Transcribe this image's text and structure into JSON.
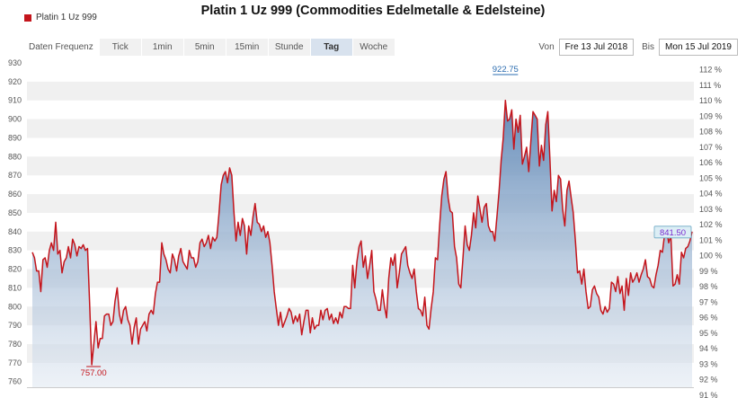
{
  "title": "Platin 1 Uz 999 (Commodities Edelmetalle & Edelsteine)",
  "legend": {
    "series_name": "Platin 1 Uz 999"
  },
  "toolbar": {
    "frequency_label": "Daten Frequenz",
    "frequencies": [
      "Tick",
      "1min",
      "5min",
      "15min",
      "Stunde",
      "Tag",
      "Woche"
    ],
    "active_frequency": "Tag"
  },
  "range": {
    "from_label": "Von",
    "from_value": "Fre 13 Jul 2018",
    "to_label": "Bis",
    "to_value": "Mon 15 Jul 2019"
  },
  "colors": {
    "line": "#c4151c",
    "band": "#f0f0f0",
    "fill_top": "#5a84b4",
    "fill_bottom": "#dfe7f1",
    "axis_text": "#555555"
  },
  "chart_data": {
    "type": "area",
    "title": "Platin 1 Uz 999 (Commodities Edelmetalle & Edelsteine)",
    "series": [
      {
        "name": "Platin 1 Uz 999",
        "values": [
          829,
          826,
          819,
          819,
          808,
          825,
          826,
          821,
          830,
          834,
          830,
          845,
          828,
          830,
          818,
          824,
          826,
          832,
          826,
          836,
          833,
          827,
          832,
          831,
          833,
          830,
          831,
          802,
          769,
          780,
          792,
          778,
          783,
          783,
          795,
          796,
          796,
          790,
          792,
          803,
          810,
          796,
          791,
          798,
          800,
          793,
          790,
          780,
          789,
          794,
          780,
          788,
          790,
          792,
          787,
          796,
          798,
          796,
          807,
          813,
          813,
          834,
          828,
          825,
          820,
          818,
          828,
          825,
          819,
          827,
          831,
          824,
          822,
          820,
          830,
          826,
          826,
          821,
          824,
          834,
          836,
          832,
          834,
          838,
          831,
          837,
          835,
          837,
          850,
          865,
          870,
          872,
          866,
          874,
          870,
          851,
          835,
          845,
          838,
          847,
          843,
          828,
          843,
          838,
          848,
          855,
          845,
          844,
          840,
          843,
          837,
          840,
          834,
          822,
          808,
          799,
          790,
          797,
          789,
          792,
          795,
          799,
          797,
          791,
          795,
          792,
          796,
          785,
          792,
          798,
          798,
          786,
          794,
          788,
          790,
          790,
          798,
          793,
          798,
          799,
          793,
          796,
          791,
          794,
          791,
          797,
          794,
          800,
          800,
          799,
          799,
          822,
          810,
          824,
          832,
          835,
          821,
          827,
          815,
          822,
          830,
          808,
          804,
          798,
          798,
          809,
          800,
          794,
          815,
          826,
          822,
          828,
          810,
          818,
          828,
          830,
          832,
          822,
          818,
          815,
          820,
          808,
          799,
          798,
          795,
          805,
          790,
          788,
          799,
          808,
          826,
          825,
          843,
          859,
          868,
          872,
          858,
          851,
          850,
          832,
          826,
          812,
          810,
          826,
          843,
          833,
          830,
          838,
          850,
          842,
          859,
          852,
          845,
          853,
          855,
          843,
          840,
          840,
          835,
          848,
          861,
          878,
          890,
          910,
          899,
          900,
          905,
          884,
          900,
          893,
          902,
          876,
          880,
          885,
          872,
          888,
          904,
          902,
          900,
          875,
          886,
          878,
          897,
          904,
          878,
          851,
          862,
          856,
          870,
          868,
          852,
          843,
          862,
          867,
          858,
          850,
          835,
          818,
          819,
          812,
          820,
          808,
          799,
          800,
          809,
          811,
          807,
          805,
          798,
          796,
          800,
          797,
          799,
          813,
          812,
          808,
          816,
          807,
          811,
          798,
          815,
          806,
          818,
          813,
          815,
          818,
          813,
          817,
          820,
          825,
          816,
          815,
          811,
          810,
          817,
          822,
          830,
          829,
          838,
          841,
          834,
          838,
          811,
          812,
          817,
          812,
          829,
          826,
          831,
          832,
          835,
          840
        ]
      }
    ],
    "ylim": [
      757,
      930
    ],
    "y_ticks": [
      760,
      770,
      780,
      790,
      800,
      810,
      820,
      830,
      840,
      850,
      860,
      870,
      880,
      890,
      900,
      910,
      920,
      930
    ],
    "y2_ticks": [
      "91 %",
      "92 %",
      "93 %",
      "94 %",
      "95 %",
      "96 %",
      "97 %",
      "98 %",
      "99 %",
      "100 %",
      "101 %",
      "102 %",
      "103 %",
      "104 %",
      "105 %",
      "106 %",
      "107 %",
      "108 %",
      "109 %",
      "110 %",
      "111 %",
      "112 %"
    ],
    "y2_min_pct": 91,
    "y2_max_pct": 112,
    "y2_base": 827.13,
    "annotations": {
      "min_label": "757.00",
      "max_label": "922.75",
      "last_label": "841.50"
    },
    "grid": "alternating-bands",
    "legend_position": "top-left"
  }
}
